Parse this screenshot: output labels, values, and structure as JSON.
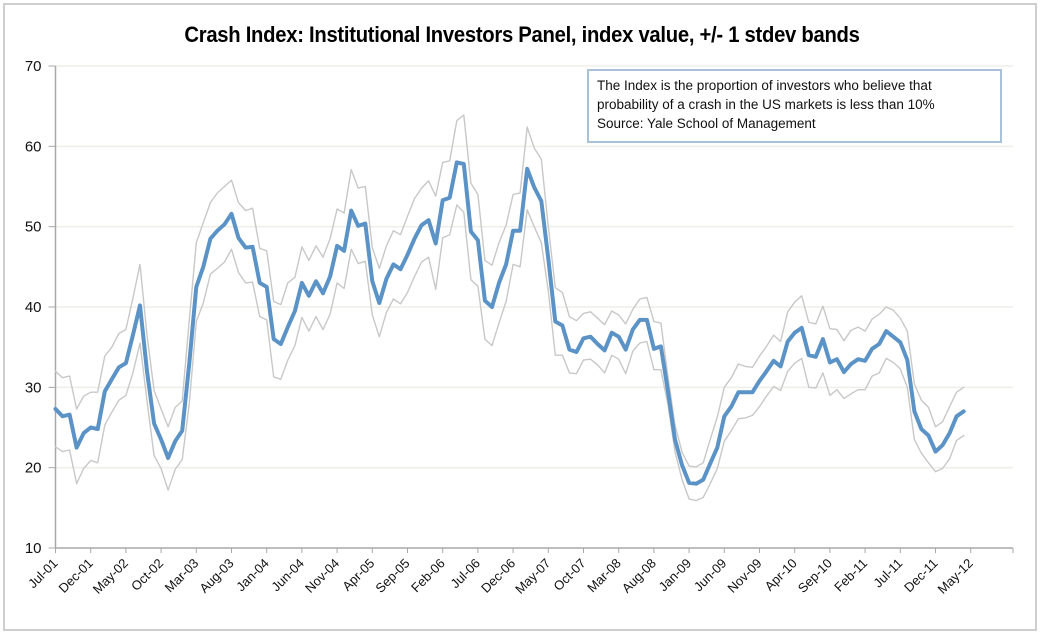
{
  "chart_data": {
    "type": "line",
    "title": "Crash Index: Institutional Investors Panel, index value, +/- 1 stdev bands",
    "annotation": [
      "The Index is the proportion of investors who believe that",
      "probability of a crash in the US markets is less than 10%",
      "Source: Yale School of Management"
    ],
    "xlabel": "",
    "ylabel": "",
    "ylim": [
      10,
      70
    ],
    "yticks": [
      10,
      20,
      30,
      40,
      50,
      60,
      70
    ],
    "grid": true,
    "legend": "none",
    "x_start": "Jul-01",
    "x_frequency": "monthly",
    "xtick_labels": [
      "Jul-01",
      "Dec-01",
      "May-02",
      "Oct-02",
      "Mar-03",
      "Aug-03",
      "Jan-04",
      "Jun-04",
      "Nov-04",
      "Apr-05",
      "Sep-05",
      "Feb-06",
      "Jul-06",
      "Dec-06",
      "May-07",
      "Oct-07",
      "Mar-08",
      "Aug-08",
      "Jan-09",
      "Jun-09",
      "Nov-09",
      "Apr-10",
      "Sep-10",
      "Feb-11",
      "Jul-11",
      "Dec-11",
      "May-12"
    ],
    "series": [
      {
        "name": "Index value",
        "color": "#5b93c7",
        "values": [
          27.3,
          26.4,
          26.6,
          22.5,
          24.3,
          25.0,
          24.8,
          29.5,
          31.0,
          32.5,
          33.0,
          36.5,
          40.2,
          32.0,
          25.5,
          23.5,
          21.2,
          23.3,
          24.6,
          33.0,
          42.5,
          45.0,
          48.5,
          49.5,
          50.3,
          51.6,
          48.6,
          47.4,
          47.5,
          43.0,
          42.5,
          36.0,
          35.4,
          37.5,
          39.5,
          43.0,
          41.4,
          43.2,
          41.7,
          43.8,
          47.6,
          47.0,
          52.0,
          50.1,
          50.4,
          43.2,
          40.5,
          43.5,
          45.3,
          44.7,
          46.5,
          48.5,
          50.2,
          50.8,
          47.9,
          53.3,
          53.6,
          58.0,
          57.8,
          49.4,
          48.3,
          40.8,
          40.0,
          43.0,
          45.3,
          49.5,
          49.5,
          57.2,
          54.9,
          53.2,
          46.0,
          38.2,
          37.7,
          34.7,
          34.4,
          36.1,
          36.3,
          35.4,
          34.6,
          36.8,
          36.3,
          34.7,
          37.2,
          38.4,
          38.4,
          34.8,
          35.1,
          29.5,
          23.5,
          20.3,
          18.1,
          18.0,
          18.5,
          20.5,
          22.5,
          26.4,
          27.6,
          29.4,
          29.4,
          29.4,
          30.8,
          32.0,
          33.3,
          32.6,
          35.7,
          36.8,
          37.4,
          34.0,
          33.8,
          36.0,
          33.1,
          33.5,
          31.9,
          32.9,
          33.5,
          33.3,
          34.8,
          35.4,
          37.0,
          36.3,
          35.6,
          33.4,
          27.0,
          24.8,
          24.0,
          22.0,
          22.8,
          24.3,
          26.4,
          27.0
        ]
      },
      {
        "name": "+1 stdev",
        "color": "#c8c8c8",
        "values": [
          32.0,
          31.2,
          31.4,
          27.3,
          28.9,
          29.4,
          29.4,
          33.9,
          35.0,
          36.7,
          37.2,
          41.1,
          45.3,
          36.5,
          29.6,
          27.3,
          25.1,
          27.5,
          28.3,
          38.4,
          48.0,
          50.5,
          53.0,
          54.2,
          55.0,
          55.8,
          53.0,
          52.0,
          52.3,
          47.3,
          47.0,
          40.7,
          40.3,
          43.0,
          43.7,
          47.5,
          45.8,
          47.6,
          46.2,
          48.5,
          52.2,
          51.7,
          57.1,
          54.8,
          55.0,
          47.4,
          44.8,
          47.6,
          49.5,
          49.0,
          51.3,
          53.5,
          54.8,
          55.7,
          53.8,
          58.0,
          58.2,
          63.2,
          63.9,
          55.4,
          54.0,
          45.8,
          45.2,
          48.0,
          50.2,
          54.0,
          54.2,
          62.4,
          59.8,
          58.4,
          50.0,
          42.4,
          41.8,
          38.8,
          38.3,
          39.2,
          39.4,
          38.6,
          37.8,
          39.5,
          39.0,
          37.9,
          39.7,
          41.0,
          41.2,
          38.2,
          38.0,
          31.3,
          25.3,
          21.9,
          20.2,
          20.1,
          20.6,
          23.5,
          26.3,
          30.0,
          31.2,
          32.9,
          32.6,
          32.5,
          33.9,
          35.1,
          36.5,
          35.7,
          39.4,
          40.6,
          41.4,
          38.1,
          37.9,
          40.1,
          37.3,
          37.2,
          35.8,
          37.1,
          37.5,
          37.0,
          38.5,
          39.1,
          40.0,
          39.6,
          38.6,
          37.0,
          30.4,
          28.4,
          27.5,
          25.1,
          25.7,
          27.6,
          29.4,
          30.0
        ]
      },
      {
        "name": "-1 stdev",
        "color": "#c8c8c8",
        "values": [
          22.6,
          22.0,
          22.2,
          18.0,
          19.9,
          20.9,
          20.6,
          25.3,
          26.9,
          28.4,
          29.0,
          31.8,
          35.5,
          28.3,
          21.5,
          19.9,
          17.2,
          19.8,
          21.0,
          28.0,
          38.2,
          40.5,
          44.1,
          44.8,
          45.6,
          47.2,
          44.3,
          43.0,
          43.1,
          38.8,
          38.4,
          31.3,
          31.0,
          33.4,
          35.2,
          38.7,
          37.0,
          38.8,
          37.2,
          39.1,
          43.0,
          42.3,
          47.2,
          45.4,
          45.7,
          39.0,
          36.3,
          39.3,
          41.0,
          40.4,
          41.8,
          43.8,
          45.6,
          46.2,
          42.2,
          48.6,
          49.0,
          52.7,
          51.8,
          43.4,
          42.6,
          36.0,
          35.2,
          38.0,
          40.7,
          45.3,
          45.0,
          52.1,
          50.0,
          48.0,
          42.0,
          34.0,
          34.0,
          31.8,
          31.7,
          33.4,
          33.5,
          32.8,
          31.8,
          34.0,
          33.5,
          31.7,
          34.5,
          35.5,
          35.7,
          32.2,
          32.2,
          27.8,
          22.0,
          18.5,
          16.1,
          15.9,
          16.3,
          18.0,
          19.9,
          23.3,
          24.6,
          26.1,
          26.2,
          26.5,
          27.6,
          28.9,
          30.1,
          29.6,
          32.0,
          33.0,
          33.6,
          30.0,
          29.9,
          31.8,
          29.0,
          29.7,
          28.6,
          29.2,
          29.7,
          29.7,
          31.4,
          31.8,
          33.6,
          33.1,
          32.3,
          30.0,
          23.5,
          21.8,
          20.6,
          19.5,
          19.9,
          21.1,
          23.4,
          24.0
        ]
      }
    ]
  }
}
